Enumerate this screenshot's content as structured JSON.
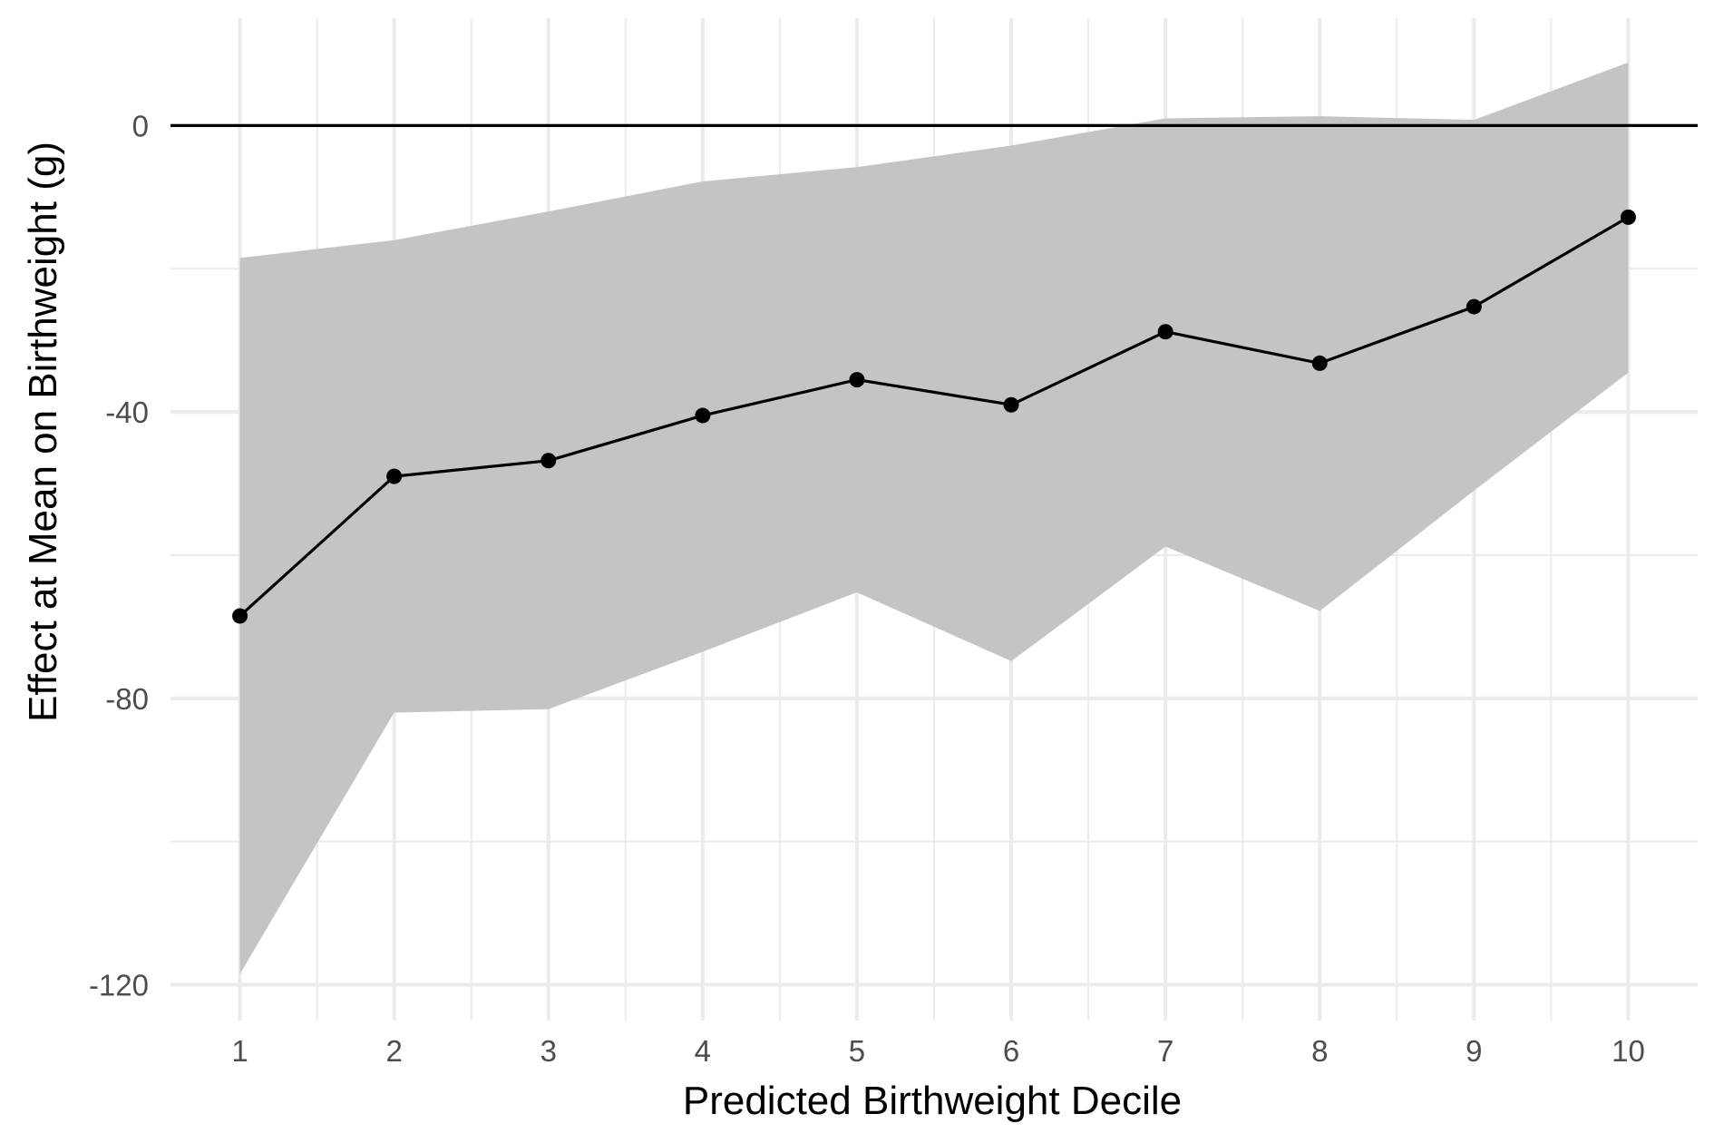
{
  "chart_data": {
    "type": "line",
    "title": "",
    "xlabel": "Predicted Birthweight Decile",
    "ylabel": "Effect at Mean on Birthweight (g)",
    "x": [
      1,
      2,
      3,
      4,
      5,
      6,
      7,
      8,
      9,
      10
    ],
    "x_tick_labels": [
      "1",
      "2",
      "3",
      "4",
      "5",
      "6",
      "7",
      "8",
      "9",
      "10"
    ],
    "y_ticks": [
      0,
      -40,
      -80,
      -120
    ],
    "y_tick_labels": [
      "0",
      "-40",
      "-80",
      "-120"
    ],
    "xlim": [
      0.55,
      10.45
    ],
    "ylim": [
      -125,
      15
    ],
    "reference_line_y": 0,
    "series": [
      {
        "values": [
          -68.5,
          -49.0,
          -46.8,
          -40.5,
          -35.5,
          -39.0,
          -28.8,
          -33.2,
          -25.3,
          -12.8
        ],
        "ci_lower": [
          -118.5,
          -82.0,
          -81.5,
          -73.5,
          -65.2,
          -74.8,
          -58.8,
          -67.8,
          -51.0,
          -34.5
        ],
        "ci_upper": [
          -18.5,
          -16.0,
          -12.0,
          -7.8,
          -5.8,
          -2.8,
          1.0,
          1.3,
          0.8,
          8.8
        ]
      }
    ],
    "grid": true,
    "colors": {
      "band": "#c2c2c2",
      "line": "#000000",
      "grid": "#ebebeb",
      "reference": "#000000"
    }
  }
}
